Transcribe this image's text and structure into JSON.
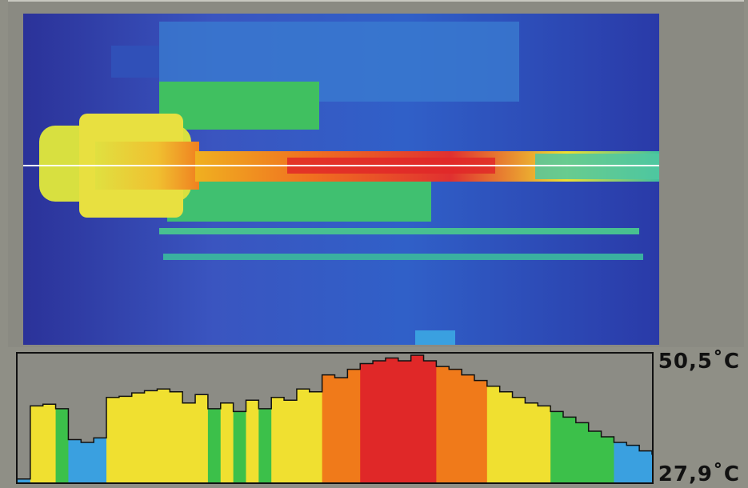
{
  "scale": {
    "max_label": "50,5˚C",
    "min_label": "27,9˚C",
    "max_value": 50.5,
    "min_value": 27.9
  },
  "colors": {
    "cold": "#2a2f9a",
    "cool": "#3aa0e0",
    "mid": "#3cc04a",
    "warm": "#f0e030",
    "hot": "#f07a1a",
    "hottest": "#e02828",
    "panel_bg": "#8c8c85"
  },
  "chart_data": {
    "type": "area",
    "title": "",
    "xlabel": "",
    "ylabel": "",
    "ylim": [
      27.9,
      50.5
    ],
    "x": [
      0,
      2,
      4,
      6,
      8,
      10,
      12,
      14,
      16,
      18,
      20,
      22,
      24,
      26,
      28,
      30,
      32,
      34,
      36,
      38,
      40,
      42,
      44,
      46,
      48,
      50,
      52,
      54,
      56,
      58,
      60,
      62,
      64,
      66,
      68,
      70,
      72,
      74,
      76,
      78,
      80,
      82,
      84,
      86,
      88,
      90,
      92,
      94,
      96,
      98,
      100
    ],
    "series": [
      {
        "values": [
          28.5,
          41.5,
          41.8,
          41.0,
          35.5,
          35.0,
          35.8,
          43.0,
          43.2,
          43.8,
          44.2,
          44.5,
          44.0,
          42.0,
          43.5,
          41.0,
          42.0,
          40.5,
          42.5,
          41.0,
          43.0,
          42.5,
          44.5,
          44.0,
          47.0,
          46.5,
          48.0,
          49.0,
          49.5,
          50.0,
          49.5,
          50.5,
          49.5,
          48.5,
          48.0,
          47.0,
          46.0,
          45.0,
          44.0,
          43.0,
          42.0,
          41.5,
          40.5,
          39.5,
          38.5,
          37.0,
          36.0,
          35.0,
          34.5,
          33.5,
          32.8
        ]
      }
    ]
  }
}
